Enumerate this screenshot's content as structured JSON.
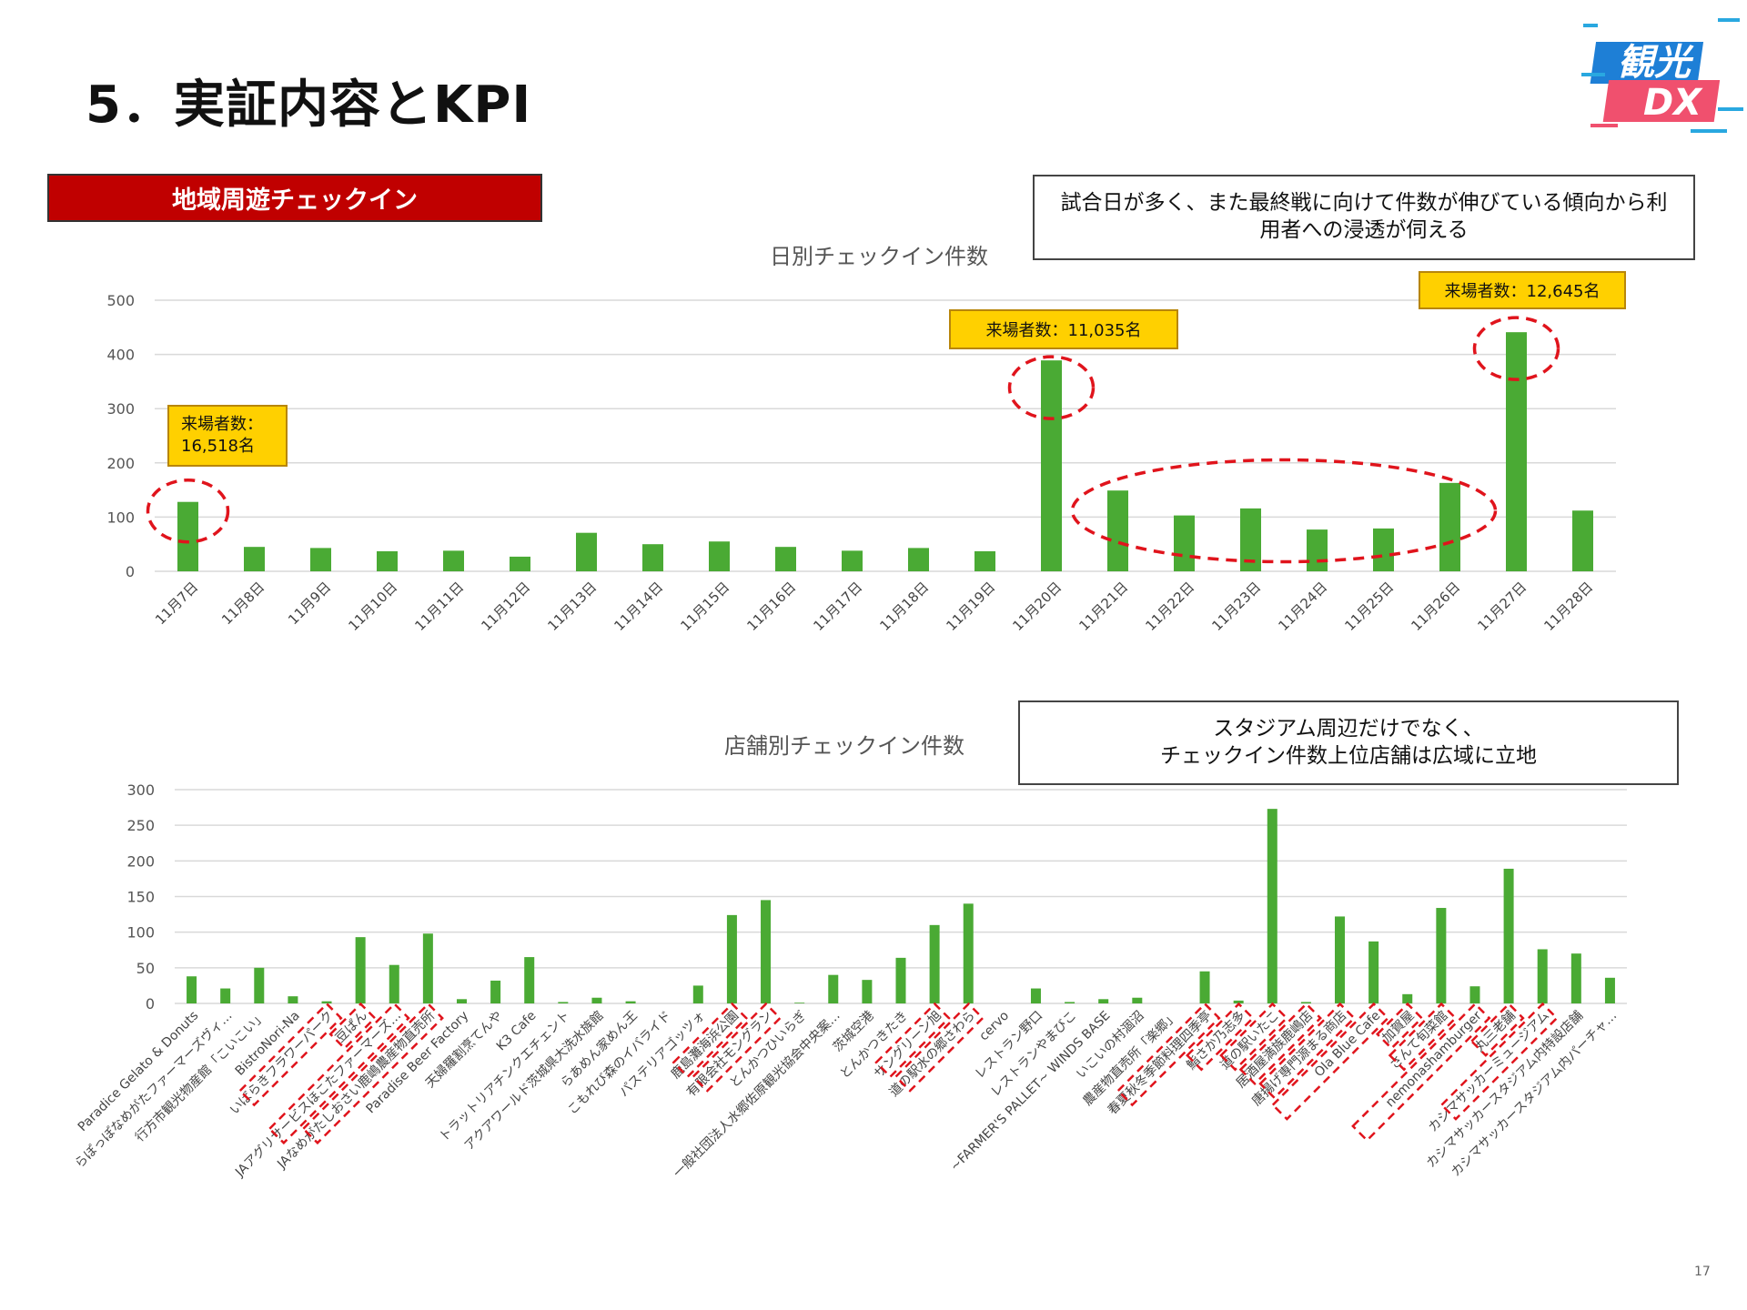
{
  "page": {
    "title": "5．実証内容とKPI",
    "section_label": "地域周遊チェックイン",
    "logo_top": "観光",
    "logo_bottom": "DX",
    "page_number": "17",
    "callout_daily": "試合日が多く、また最終戦に向けて件数が伸びている傾向から利用者への浸透が伺える",
    "callout_store_line1": "スタジアム周辺だけでなく、",
    "callout_store_line2": "チェックイン件数上位店舗は広域に立地"
  },
  "colors": {
    "bar": "#4aaa34",
    "section_bg": "#c00000",
    "highlight_box": "#ffd000",
    "dash_red": "#e0141c"
  },
  "chart_data": [
    {
      "type": "bar",
      "title": "日別チェックイン件数",
      "categories": [
        "11月7日",
        "11月8日",
        "11月9日",
        "11月10日",
        "11月11日",
        "11月12日",
        "11月13日",
        "11月14日",
        "11月15日",
        "11月16日",
        "11月17日",
        "11月18日",
        "11月19日",
        "11月20日",
        "11月21日",
        "11月22日",
        "11月23日",
        "11月24日",
        "11月25日",
        "11月26日",
        "11月27日",
        "11月28日"
      ],
      "values": [
        128,
        45,
        43,
        37,
        38,
        27,
        71,
        50,
        55,
        45,
        38,
        43,
        37,
        389,
        149,
        103,
        116,
        77,
        79,
        163,
        441,
        112
      ],
      "ylim": [
        0,
        500
      ],
      "yticks": [
        0,
        100,
        200,
        300,
        400,
        500
      ],
      "annotations": [
        {
          "text_line1": "来場者数：",
          "text_line2": "16,518名",
          "category_index": 0
        },
        {
          "text_line1": "来場者数：11,035名",
          "text_line2": "",
          "category_index": 13
        },
        {
          "text_line1": "来場者数：12,645名",
          "text_line2": "",
          "category_index": 20
        }
      ],
      "highlighted_indices": [
        0,
        13,
        20
      ],
      "highlight_range": [
        14,
        19
      ]
    },
    {
      "type": "bar",
      "title": "店舗別チェックイン件数",
      "categories": [
        "Paradice Gelato & Donuts",
        "らぽっぽなめがたファーマーズヴィ…",
        "行方市観光物産館「こいこい」",
        "BistroNori-Na",
        "いばらきフラワーパーク",
        "豆ぱん",
        "JAアグリサービスほこたファーマーズ…",
        "JAなめがたしおさい鹿嶋農産物直売所",
        "Paradise Beer Factory",
        "天婦羅割烹てんや",
        "K3 Cafe",
        "トラットリアチンクエチェント",
        "アクアワールド茨城県大洗水族館",
        "らあめん家めん王",
        "こもれび森のイバライド",
        "パステリアゴッツォ",
        "鹿島灘海浜公園",
        "有限会社モングラン",
        "とんかつひいらぎ",
        "一般社団法人水郷佐原観光協会中央案…",
        "茨城空港",
        "とんかつきたき",
        "サングリーン旭",
        "道の駅水の郷さわら",
        "cervo",
        "レストラン野口",
        "レストランやまびこ",
        "~FARMER'S PALLET~ WINDS BASE",
        "いこいの村涸沼",
        "農産物直売所「楽郷」",
        "春夏秋冬季節料理四季亭",
        "鮨さか乃志多",
        "道の駅いたこ",
        "居酒屋満族鹿嶋店",
        "唐揚げ専門源まる商店",
        "Ola Blue Cafe",
        "加賀屋",
        "さんて旬菜館",
        "nemonashamburger",
        "丸三老舗",
        "カシマサッカーミュージアム",
        "カシマサッカースタジアム内特設店舗",
        "カシマサッカースタジアム内パーチャ…"
      ],
      "values": [
        38,
        21,
        50,
        10,
        3,
        93,
        54,
        98,
        6,
        32,
        65,
        2,
        8,
        3,
        0,
        25,
        124,
        145,
        1,
        40,
        33,
        64,
        110,
        140,
        0,
        21,
        2,
        6,
        8,
        0,
        45,
        4,
        273,
        2,
        122,
        87,
        13,
        134,
        24,
        189,
        76,
        70,
        36
      ],
      "ylim": [
        0,
        300
      ],
      "yticks": [
        0,
        50,
        100,
        150,
        200,
        250,
        300
      ],
      "highlighted_indices": [
        4,
        5,
        6,
        7,
        16,
        17,
        22,
        23,
        30,
        31,
        32,
        33,
        34,
        35,
        36,
        37,
        38,
        39,
        40
      ]
    }
  ]
}
